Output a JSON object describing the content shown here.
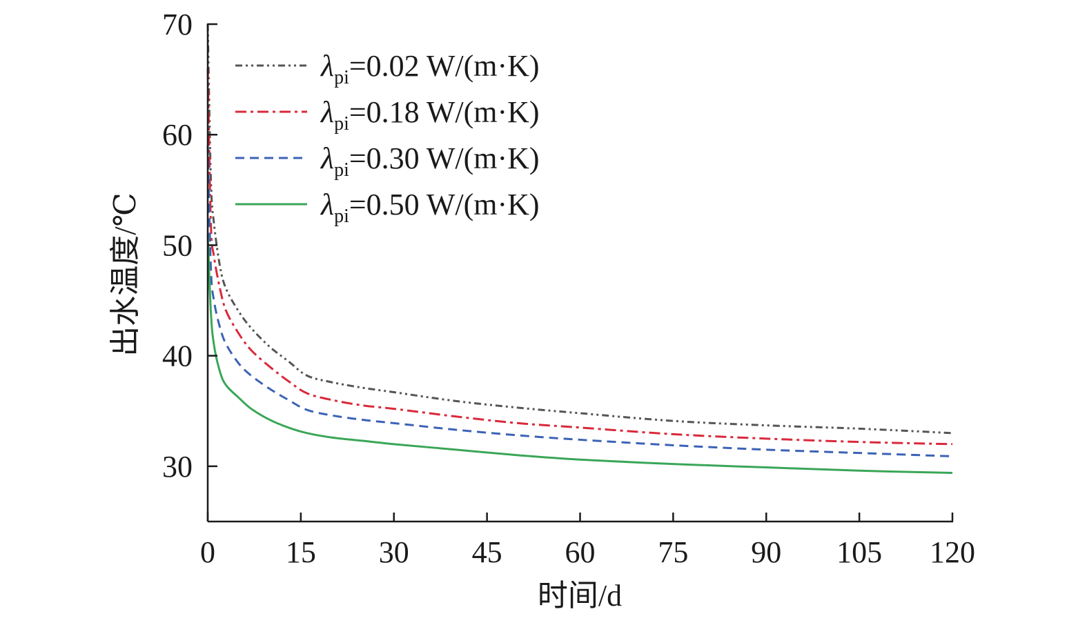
{
  "chart_data": {
    "type": "line",
    "title": "",
    "xlabel": "时间/d",
    "ylabel": "出水温度/℃",
    "xlim": [
      0,
      120
    ],
    "ylim": [
      25,
      70
    ],
    "xticks": [
      0,
      15,
      30,
      45,
      60,
      75,
      90,
      105,
      120
    ],
    "yticks": [
      30,
      40,
      50,
      60,
      70
    ],
    "grid": false,
    "legend_position": "top-left",
    "x": [
      0,
      0.5,
      1,
      2,
      3,
      5,
      7,
      10,
      13,
      16,
      20,
      25,
      30,
      40,
      50,
      60,
      75,
      90,
      105,
      120
    ],
    "series": [
      {
        "name": "λpi=0.02 W/(m·K)",
        "symbol": "λ",
        "sub": "pi",
        "label_rest": "=0.02 W/(m·K)",
        "color": "#555555",
        "style": "dash-dot-dot",
        "values": [
          70,
          56,
          52,
          48,
          46,
          44,
          42.5,
          40.8,
          39.5,
          38.2,
          37.6,
          37.1,
          36.7,
          35.9,
          35.3,
          34.8,
          34.1,
          33.7,
          33.4,
          33.0
        ]
      },
      {
        "name": "λpi=0.18 W/(m·K)",
        "symbol": "λ",
        "sub": "pi",
        "label_rest": "=0.18 W/(m·K)",
        "color": "#d9293a",
        "style": "dash-dot",
        "values": [
          66,
          52,
          49,
          46,
          44,
          42,
          40.5,
          39,
          37.7,
          36.6,
          36.0,
          35.5,
          35.2,
          34.5,
          33.9,
          33.5,
          32.9,
          32.5,
          32.2,
          32.0
        ]
      },
      {
        "name": "λpi=0.30 W/(m·K)",
        "symbol": "λ",
        "sub": "pi",
        "label_rest": "=0.30 W/(m·K)",
        "color": "#3b62b5",
        "style": "dashed",
        "values": [
          59,
          48,
          45,
          42.5,
          41,
          39.3,
          38.2,
          37,
          36,
          35.1,
          34.6,
          34.2,
          33.9,
          33.3,
          32.8,
          32.4,
          31.9,
          31.5,
          31.2,
          30.9
        ]
      },
      {
        "name": "λpi=0.50 W/(m·K)",
        "symbol": "λ",
        "sub": "pi",
        "label_rest": "=0.50 W/(m·K)",
        "color": "#3aa657",
        "style": "solid",
        "values": [
          51,
          44,
          41,
          38.5,
          37.3,
          36.2,
          35.2,
          34.2,
          33.5,
          33.0,
          32.6,
          32.3,
          32.0,
          31.5,
          31.0,
          30.6,
          30.2,
          29.9,
          29.6,
          29.4
        ]
      }
    ]
  }
}
